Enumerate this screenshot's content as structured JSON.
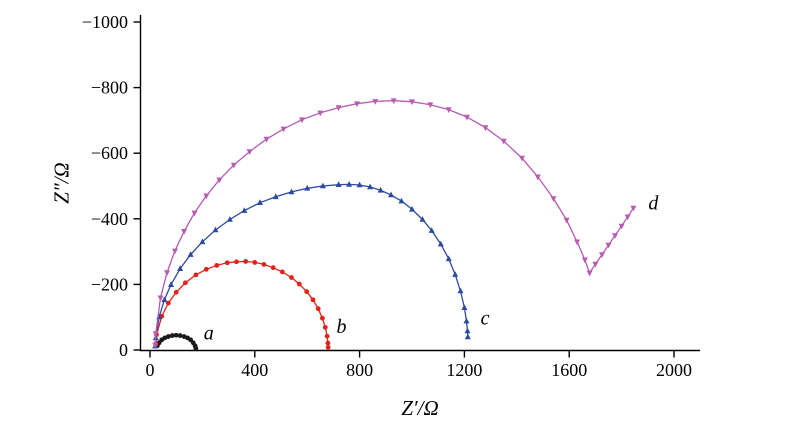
{
  "chart_data": {
    "type": "line",
    "chart_kind": "nyquist-impedance-plot",
    "title": "",
    "xlabel": "Z′/Ω",
    "ylabel": "Z″/Ω",
    "xlim": [
      0,
      2000
    ],
    "ylim": [
      0,
      -1000
    ],
    "x_ticks": [
      0,
      400,
      800,
      1200,
      1600,
      2000
    ],
    "y_ticks": [
      0,
      -200,
      -400,
      -600,
      -800,
      -1000
    ],
    "grid": false,
    "legend_position": "inline-letter-labels",
    "axis_color": "#000000",
    "series": [
      {
        "name": "a",
        "label": "a",
        "color": "#1a1a1a",
        "marker": "circle",
        "label_pos": [
          205,
          -32
        ],
        "points": [
          [
            28,
            -13
          ],
          [
            35,
            -22
          ],
          [
            45,
            -31
          ],
          [
            57,
            -37
          ],
          [
            70,
            -41
          ],
          [
            85,
            -44
          ],
          [
            100,
            -45
          ],
          [
            115,
            -44
          ],
          [
            130,
            -41
          ],
          [
            143,
            -37
          ],
          [
            155,
            -31
          ],
          [
            165,
            -22
          ],
          [
            172,
            -13
          ],
          [
            175,
            -5
          ]
        ]
      },
      {
        "name": "b",
        "label": "b",
        "color": "#e2231a",
        "marker": "circle",
        "label_pos": [
          712,
          -52
        ],
        "points": [
          [
            22,
            -18
          ],
          [
            25,
            -47
          ],
          [
            45,
            -103
          ],
          [
            70,
            -143
          ],
          [
            100,
            -176
          ],
          [
            135,
            -205
          ],
          [
            175,
            -229
          ],
          [
            215,
            -246
          ],
          [
            255,
            -258
          ],
          [
            295,
            -266
          ],
          [
            330,
            -269
          ],
          [
            365,
            -270
          ],
          [
            400,
            -267
          ],
          [
            435,
            -261
          ],
          [
            470,
            -251
          ],
          [
            505,
            -238
          ],
          [
            540,
            -221
          ],
          [
            570,
            -201
          ],
          [
            598,
            -178
          ],
          [
            622,
            -153
          ],
          [
            642,
            -126
          ],
          [
            658,
            -97
          ],
          [
            669,
            -69
          ],
          [
            676,
            -42
          ],
          [
            679,
            -21
          ],
          [
            680,
            -8
          ]
        ]
      },
      {
        "name": "c",
        "label": "c",
        "color": "#2d4aa1",
        "marker": "triangle-up",
        "label_pos": [
          1262,
          -78
        ],
        "points": [
          [
            20,
            -12
          ],
          [
            22,
            -37
          ],
          [
            35,
            -101
          ],
          [
            55,
            -153
          ],
          [
            80,
            -199
          ],
          [
            115,
            -248
          ],
          [
            155,
            -291
          ],
          [
            200,
            -330
          ],
          [
            250,
            -366
          ],
          [
            305,
            -398
          ],
          [
            360,
            -425
          ],
          [
            420,
            -449
          ],
          [
            480,
            -467
          ],
          [
            540,
            -482
          ],
          [
            600,
            -493
          ],
          [
            660,
            -500
          ],
          [
            720,
            -504
          ],
          [
            760,
            -505
          ],
          [
            800,
            -503
          ],
          [
            840,
            -497
          ],
          [
            880,
            -487
          ],
          [
            920,
            -473
          ],
          [
            960,
            -454
          ],
          [
            1000,
            -429
          ],
          [
            1040,
            -398
          ],
          [
            1075,
            -364
          ],
          [
            1110,
            -323
          ],
          [
            1140,
            -278
          ],
          [
            1165,
            -230
          ],
          [
            1185,
            -180
          ],
          [
            1200,
            -129
          ],
          [
            1208,
            -88
          ],
          [
            1212,
            -58
          ],
          [
            1213,
            -40
          ]
        ]
      },
      {
        "name": "d",
        "label": "d",
        "color": "#b75bb3",
        "marker": "triangle-down",
        "label_pos": [
          1902,
          -428
        ],
        "points": [
          [
            20,
            -15
          ],
          [
            22,
            -50
          ],
          [
            40,
            -159
          ],
          [
            65,
            -236
          ],
          [
            95,
            -302
          ],
          [
            130,
            -362
          ],
          [
            170,
            -418
          ],
          [
            215,
            -470
          ],
          [
            265,
            -519
          ],
          [
            320,
            -564
          ],
          [
            380,
            -605
          ],
          [
            445,
            -643
          ],
          [
            510,
            -674
          ],
          [
            580,
            -702
          ],
          [
            650,
            -723
          ],
          [
            720,
            -739
          ],
          [
            790,
            -751
          ],
          [
            860,
            -758
          ],
          [
            930,
            -760
          ],
          [
            1000,
            -757
          ],
          [
            1070,
            -748
          ],
          [
            1140,
            -733
          ],
          [
            1210,
            -710
          ],
          [
            1280,
            -678
          ],
          [
            1350,
            -637
          ],
          [
            1420,
            -585
          ],
          [
            1480,
            -528
          ],
          [
            1540,
            -462
          ],
          [
            1590,
            -396
          ],
          [
            1630,
            -330
          ],
          [
            1660,
            -275
          ],
          [
            1678,
            -235
          ],
          [
            1700,
            -262
          ],
          [
            1725,
            -291
          ],
          [
            1750,
            -320
          ],
          [
            1775,
            -349
          ],
          [
            1800,
            -378
          ],
          [
            1823,
            -406
          ],
          [
            1845,
            -433
          ]
        ]
      }
    ]
  }
}
